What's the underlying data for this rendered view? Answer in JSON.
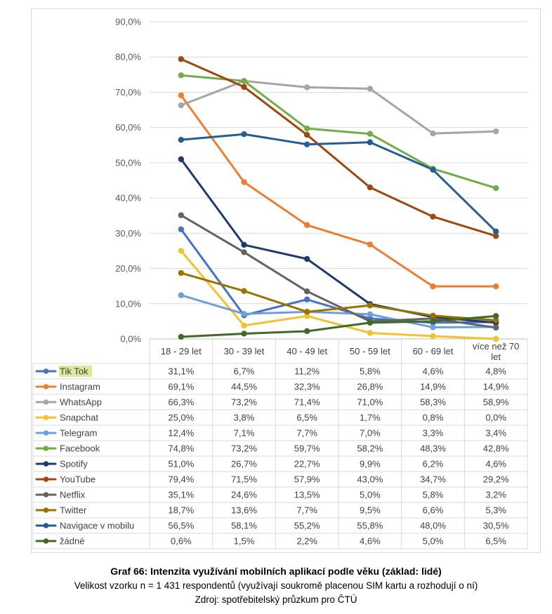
{
  "chart_data": {
    "type": "line",
    "categories": [
      "18 - 29 let",
      "30 - 39 let",
      "40 - 49 let",
      "50 - 59 let",
      "60 - 69 let",
      "více než 70 let"
    ],
    "y_ticks": [
      "0,0%",
      "10,0%",
      "20,0%",
      "30,0%",
      "40,0%",
      "50,0%",
      "60,0%",
      "70,0%",
      "80,0%",
      "90,0%"
    ],
    "ylim": [
      0,
      90
    ],
    "grid": true,
    "legend": "data-table-below",
    "series": [
      {
        "name": "Tik Tok",
        "highlight": "#d9ea9a",
        "color": "#4472c4",
        "values": [
          31.1,
          6.7,
          11.2,
          5.8,
          4.6,
          4.8
        ],
        "labels": [
          "31,1%",
          "6,7%",
          "11,2%",
          "5,8%",
          "4,6%",
          "4,8%"
        ]
      },
      {
        "name": "Instagram",
        "color": "#ed7d31",
        "values": [
          69.1,
          44.5,
          32.3,
          26.8,
          14.9,
          14.9
        ],
        "labels": [
          "69,1%",
          "44,5%",
          "32,3%",
          "26,8%",
          "14,9%",
          "14,9%"
        ]
      },
      {
        "name": "WhatsApp",
        "color": "#a5a5a5",
        "values": [
          66.3,
          73.2,
          71.4,
          71.0,
          58.3,
          58.9
        ],
        "labels": [
          "66,3%",
          "73,2%",
          "71,4%",
          "71,0%",
          "58,3%",
          "58,9%"
        ]
      },
      {
        "name": "Snapchat",
        "color": "#f2c230",
        "values": [
          25.0,
          3.8,
          6.5,
          1.7,
          0.8,
          0.0
        ],
        "labels": [
          "25,0%",
          "3,8%",
          "6,5%",
          "1,7%",
          "0,8%",
          "0,0%"
        ]
      },
      {
        "name": "Telegram",
        "color": "#6f9fd8",
        "values": [
          12.4,
          7.1,
          7.7,
          7.0,
          3.3,
          3.4
        ],
        "labels": [
          "12,4%",
          "7,1%",
          "7,7%",
          "7,0%",
          "3,3%",
          "3,4%"
        ]
      },
      {
        "name": "Facebook",
        "color": "#70ad47",
        "values": [
          74.8,
          73.2,
          59.7,
          58.2,
          48.3,
          42.8
        ],
        "labels": [
          "74,8%",
          "73,2%",
          "59,7%",
          "58,2%",
          "48,3%",
          "42,8%"
        ]
      },
      {
        "name": "Spotify",
        "color": "#1f3a6e",
        "values": [
          51.0,
          26.7,
          22.7,
          9.9,
          6.2,
          4.6
        ],
        "labels": [
          "51,0%",
          "26,7%",
          "22,7%",
          "9,9%",
          "6,2%",
          "4,6%"
        ]
      },
      {
        "name": "YouTube",
        "color": "#9e480e",
        "values": [
          79.4,
          71.5,
          57.9,
          43.0,
          34.7,
          29.2
        ],
        "labels": [
          "79,4%",
          "71,5%",
          "57,9%",
          "43,0%",
          "34,7%",
          "29,2%"
        ]
      },
      {
        "name": "Netflix",
        "color": "#636363",
        "values": [
          35.1,
          24.6,
          13.5,
          5.0,
          5.8,
          3.2
        ],
        "labels": [
          "35,1%",
          "24,6%",
          "13,5%",
          "5,0%",
          "5,8%",
          "3,2%"
        ]
      },
      {
        "name": "Twitter",
        "color": "#997300",
        "values": [
          18.7,
          13.6,
          7.7,
          9.5,
          6.6,
          5.3
        ],
        "labels": [
          "18,7%",
          "13,6%",
          "7,7%",
          "9,5%",
          "6,6%",
          "5,3%"
        ]
      },
      {
        "name": "Navigace v mobilu",
        "color": "#255e91",
        "values": [
          56.5,
          58.1,
          55.2,
          55.8,
          48.0,
          30.5
        ],
        "labels": [
          "56,5%",
          "58,1%",
          "55,2%",
          "55,8%",
          "48,0%",
          "30,5%"
        ]
      },
      {
        "name": "žádné",
        "color": "#43682b",
        "values": [
          0.6,
          1.5,
          2.2,
          4.6,
          5.0,
          6.5
        ],
        "labels": [
          "0,6%",
          "1,5%",
          "2,2%",
          "4,6%",
          "5,0%",
          "6,5%"
        ]
      }
    ]
  },
  "caption": {
    "title": "Graf 66: Intenzita využívání mobilních aplikací podle věku (základ: lidé)",
    "subtitle": "Velikost vzorku n = 1 431 respondentů (využívají soukromě placenou SIM kartu a rozhodují o ní)",
    "source": "Zdroj: spotřebitelský průzkum pro ČTÚ"
  }
}
